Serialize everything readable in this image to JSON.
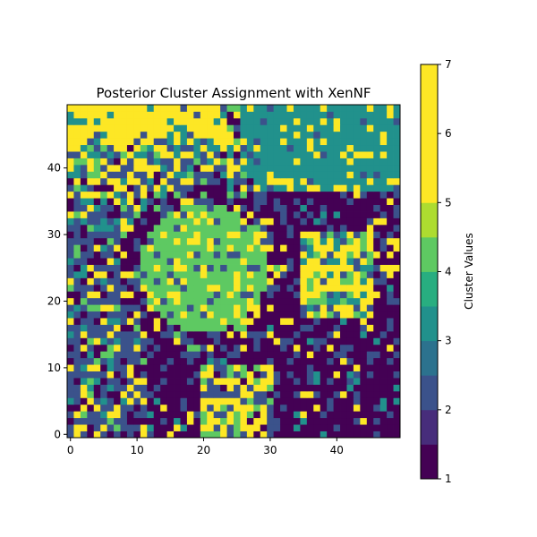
{
  "chart_data": {
    "type": "heatmap",
    "title": "Posterior Cluster Assignment with XenNF",
    "xlabel": "",
    "ylabel": "",
    "grid_size": [
      50,
      50
    ],
    "origin": "lower",
    "xlim": [
      -0.5,
      49.5
    ],
    "ylim": [
      -0.5,
      49.5
    ],
    "x_ticks": [
      0,
      10,
      20,
      30,
      40
    ],
    "y_ticks": [
      0,
      10,
      20,
      30,
      40
    ],
    "colorbar": {
      "label": "Cluster Values",
      "range": [
        1,
        7
      ],
      "ticks": [
        1,
        2,
        3,
        4,
        5,
        6,
        7
      ],
      "levels": [
        1,
        1.5,
        2,
        2.5,
        3,
        3.5,
        4,
        4.5,
        5,
        5.5,
        6,
        6.5,
        7
      ],
      "colors": [
        "#440154",
        "#472d7b",
        "#3b528b",
        "#2c728e",
        "#21918c",
        "#28ae80",
        "#5ec962",
        "#addc30",
        "#fde725"
      ]
    },
    "regions_dominant_cluster": [
      {
        "area": "background (bottom-right and lower-left)",
        "cluster": 1
      },
      {
        "area": "outer ring / left and bottom border",
        "cluster": 2
      },
      {
        "area": "upper-right region",
        "cluster": 3
      },
      {
        "area": "central circular blob (x 10-30, y 15-35)",
        "cluster": 4
      },
      {
        "area": "scattered edges of blob, lower-center patch, right cluster",
        "cluster": 5
      },
      {
        "area": "upper-left corner",
        "cluster": 6
      },
      {
        "area": "isolated pixels (e.g. near x 48, y 25; x 6, y 3)",
        "cluster": 7
      }
    ]
  }
}
